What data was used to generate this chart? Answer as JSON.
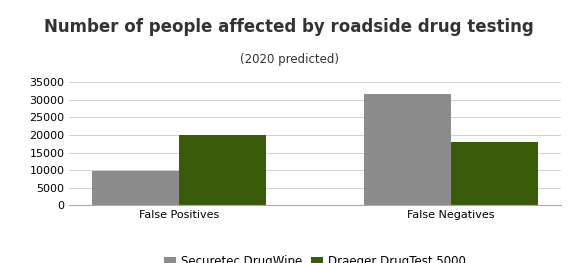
{
  "title": "Number of people affected by roadside drug testing",
  "subtitle": "(2020 predicted)",
  "categories": [
    "False Positives",
    "False Negatives"
  ],
  "series": [
    {
      "name": "Securetec DrugWipe",
      "values": [
        9800,
        31700
      ],
      "color": "#8c8c8c"
    },
    {
      "name": "Draeger DrugTest 5000",
      "values": [
        19900,
        18100
      ],
      "color": "#3a5c0a"
    }
  ],
  "ylim": [
    0,
    37500
  ],
  "yticks": [
    0,
    5000,
    10000,
    15000,
    20000,
    25000,
    30000,
    35000
  ],
  "bar_width": 0.32,
  "background_color": "#ffffff",
  "grid_color": "#d0d0d0",
  "title_fontsize": 12,
  "subtitle_fontsize": 8.5,
  "tick_fontsize": 8,
  "legend_fontsize": 8.5
}
